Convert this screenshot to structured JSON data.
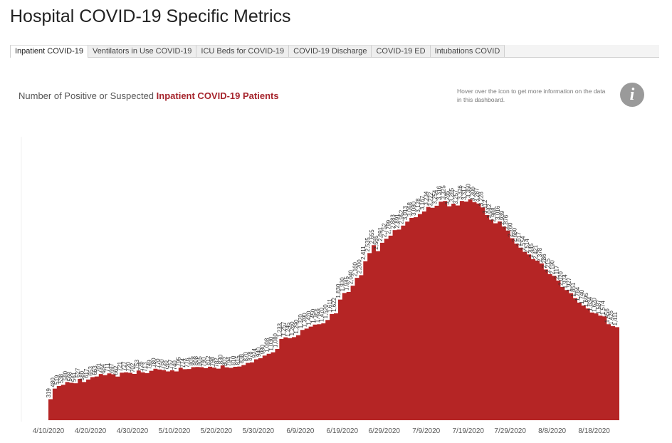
{
  "page": {
    "title": "Hospital COVID-19 Specific Metrics"
  },
  "tabs": [
    {
      "label": "Inpatient COVID-19",
      "active": true
    },
    {
      "label": "Ventilators in Use COVID-19",
      "active": false
    },
    {
      "label": "ICU Beds for COVID-19",
      "active": false
    },
    {
      "label": "COVID-19 Discharge",
      "active": false
    },
    {
      "label": "COVID-19 ED",
      "active": false
    },
    {
      "label": "Intubations COVID",
      "active": false
    }
  ],
  "subtitle": {
    "prefix": "Number of Positive or Suspected ",
    "highlight": "Inpatient COVID-19 Patients"
  },
  "hint": {
    "text": "Hover over the icon to get more information on the data in this dashboard."
  },
  "info_icon": {
    "glyph": "i",
    "icon": "info-icon"
  },
  "colors": {
    "area": "#b52525",
    "highlight_text": "#a6252d",
    "icon_bg": "#9a9a9a"
  },
  "chart_data": {
    "type": "area",
    "title": "",
    "xlabel": "",
    "ylabel": "",
    "ylim": [
      0,
      4300
    ],
    "grid": false,
    "x_ticks": [
      "4/10/2020",
      "4/20/2020",
      "4/30/2020",
      "5/10/2020",
      "5/20/2020",
      "5/30/2020",
      "6/9/2020",
      "6/19/2020",
      "6/29/2020",
      "7/9/2020",
      "7/19/2020",
      "7/29/2020",
      "8/8/2020",
      "8/18/2020"
    ],
    "start_date": "2020-04-10",
    "values": [
      319,
      480,
      519,
      538,
      580,
      568,
      561,
      627,
      580,
      617,
      653,
      663,
      701,
      684,
      711,
      697,
      662,
      721,
      727,
      720,
      702,
      753,
      726,
      713,
      749,
      780,
      770,
      760,
      740,
      757,
      740,
      795,
      774,
      776,
      805,
      808,
      805,
      790,
      812,
      798,
      782,
      830,
      802,
      794,
      810,
      815,
      838,
      870,
      878,
      924,
      940,
      980,
      1008,
      1030,
      1080,
      1233,
      1257,
      1245,
      1260,
      1290,
      1370,
      1390,
      1420,
      1450,
      1456,
      1470,
      1520,
      1611,
      1622,
      1830,
      1930,
      1945,
      2040,
      2160,
      2200,
      2411,
      2535,
      2655,
      2565,
      2691,
      2752,
      2799,
      2883,
      2891,
      2952,
      3013,
      3068,
      3080,
      3128,
      3167,
      3234,
      3222,
      3254,
      3316,
      3325,
      3245,
      3285,
      3257,
      3326,
      3317,
      3350,
      3306,
      3287,
      3228,
      3112,
      3042,
      2988,
      3016,
      2939,
      2876,
      2760,
      2680,
      2617,
      2554,
      2514,
      2445,
      2421,
      2378,
      2286,
      2215,
      2190,
      2117,
      2020,
      1974,
      1927,
      1851,
      1784,
      1740,
      1695,
      1634,
      1620,
      1587,
      1574,
      1456,
      1426,
      1411
    ]
  }
}
